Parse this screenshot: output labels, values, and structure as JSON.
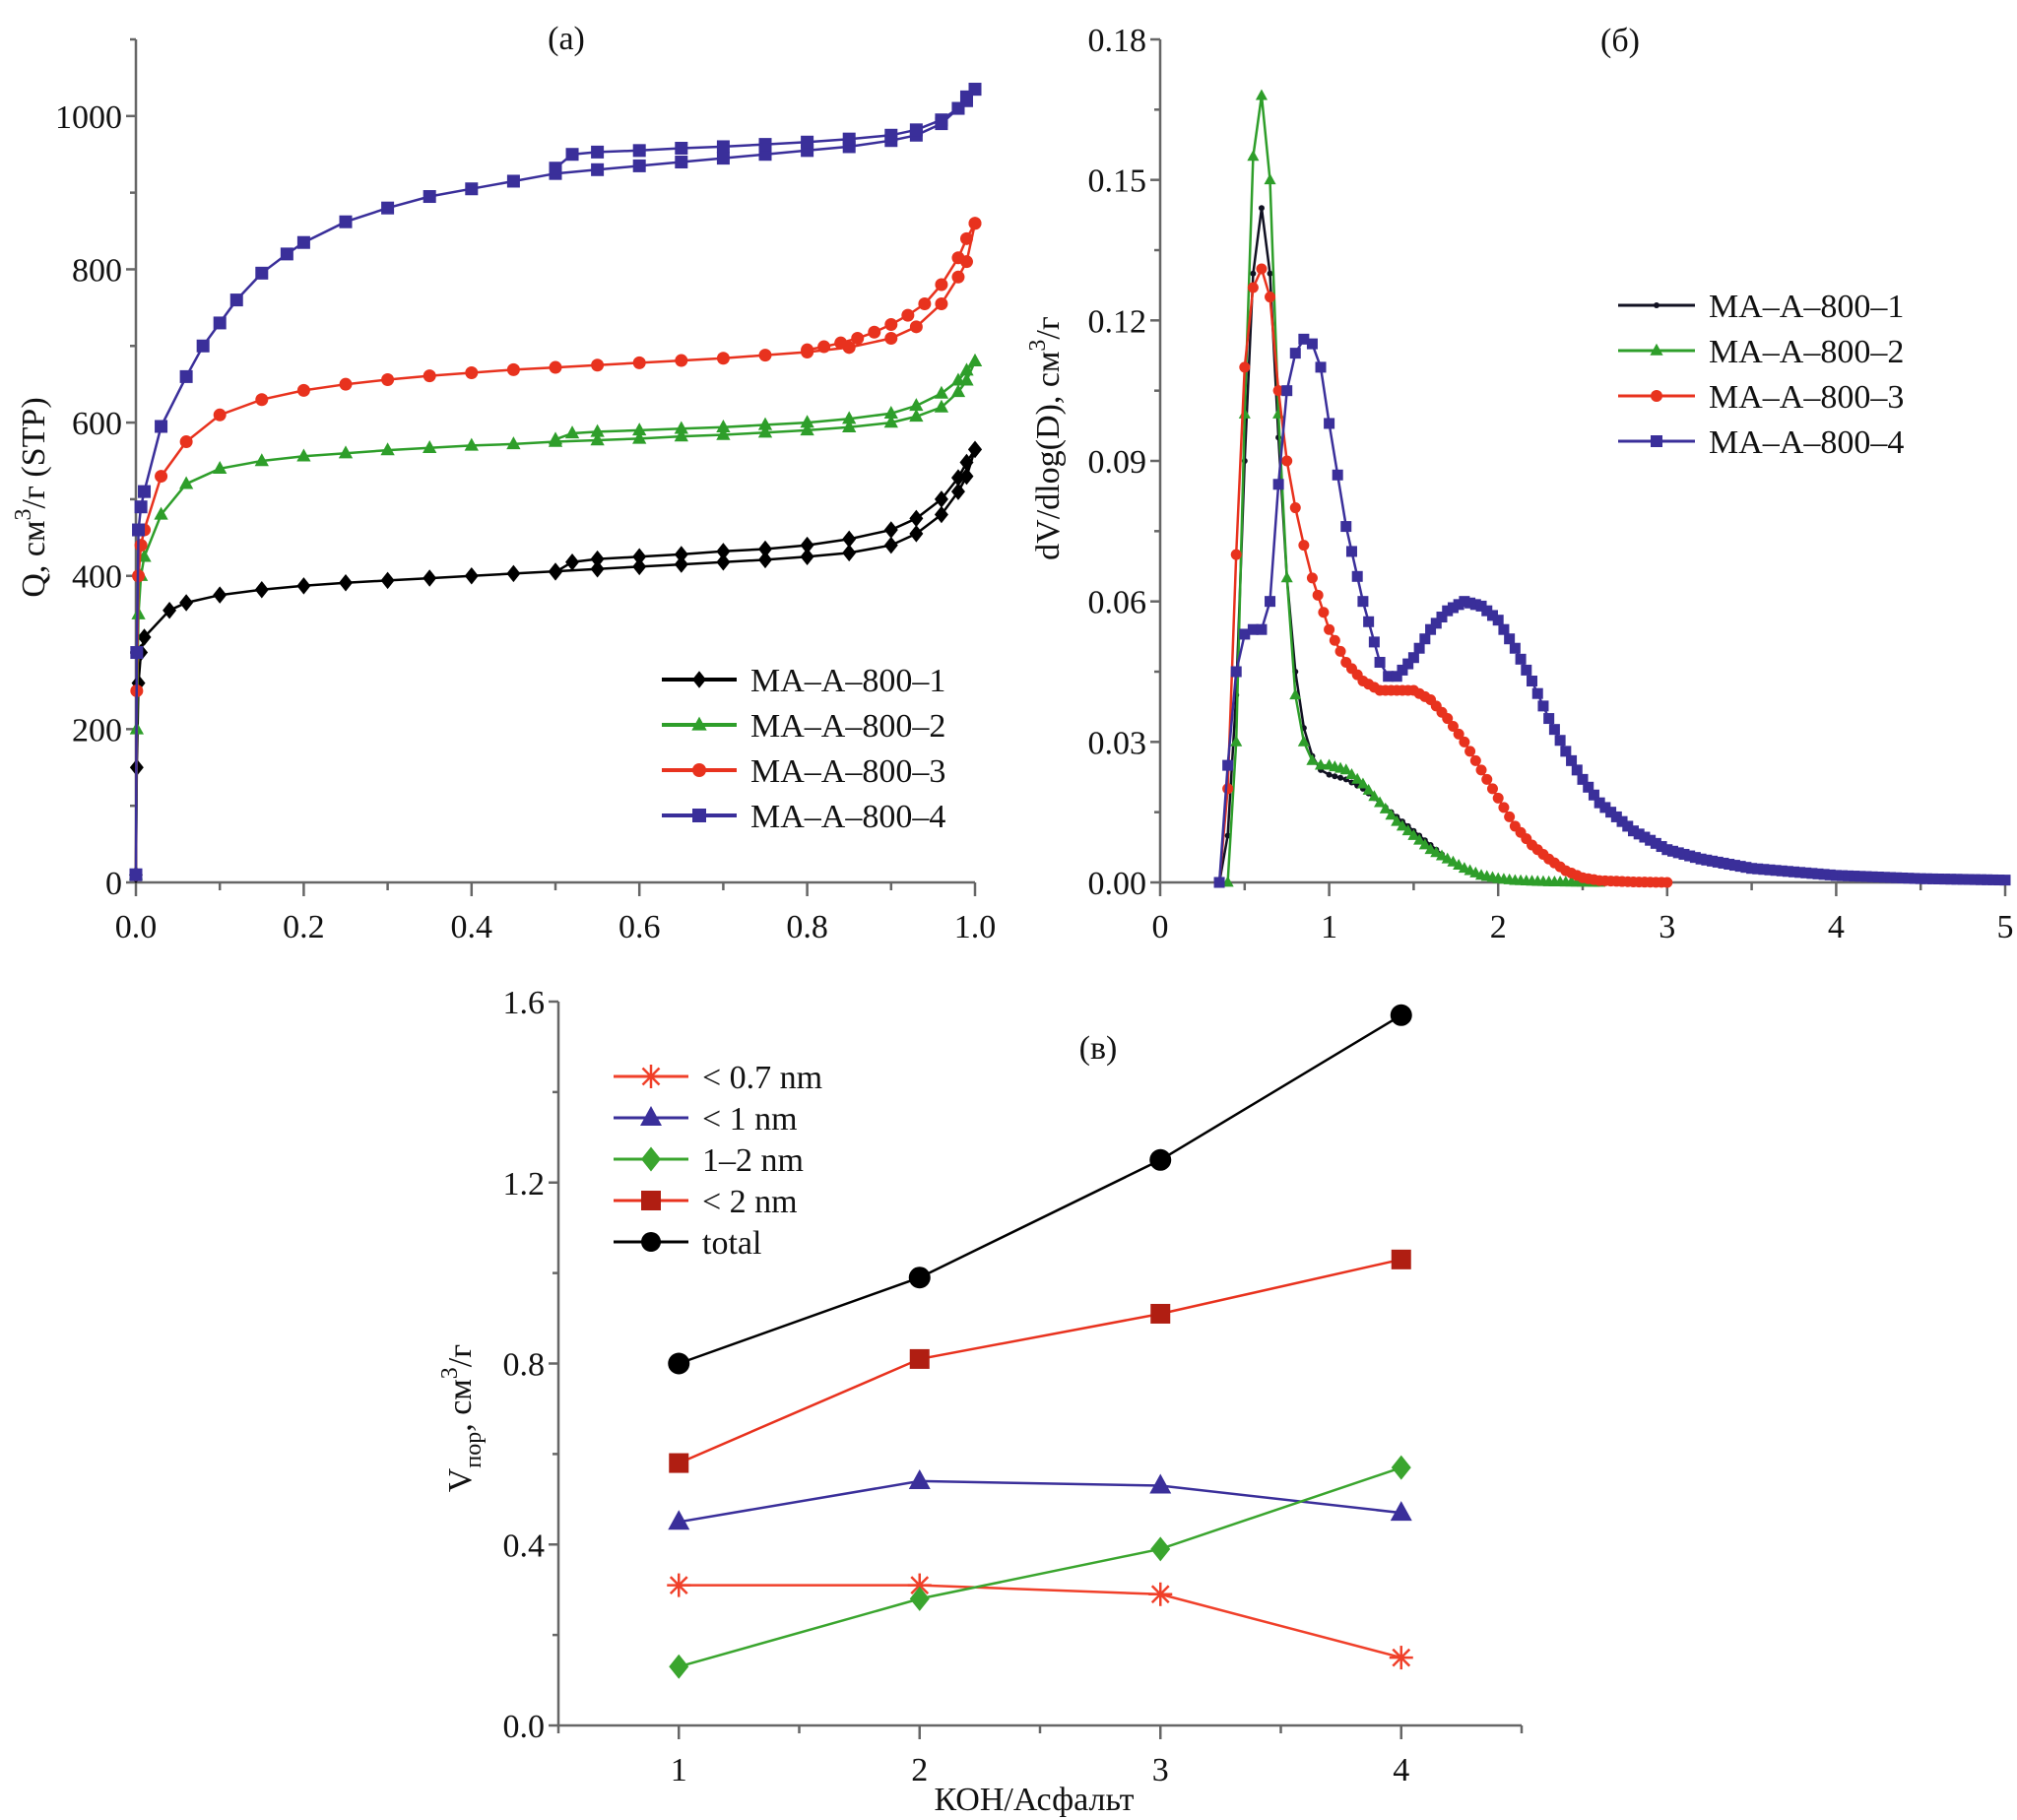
{
  "chart_data": [
    {
      "id": "a",
      "type": "line",
      "panel_label": "(a)",
      "title": "",
      "xlabel": "",
      "ylabel": "Q, см³/г (STP)",
      "ylabel_parts": {
        "main": "Q, см",
        "sup": "3",
        "tail": "/г (STP)"
      },
      "xlim": [
        0,
        1.0
      ],
      "ylim": [
        0,
        1100
      ],
      "xticks": [
        0.0,
        0.2,
        0.4,
        0.6,
        0.8,
        1.0
      ],
      "xtick_labels": [
        "0.0",
        "0.2",
        "0.4",
        "0.6",
        "0.8",
        "1.0"
      ],
      "yticks": [
        0,
        200,
        400,
        600,
        800,
        1000
      ],
      "ytick_labels": [
        "0",
        "200",
        "400",
        "600",
        "800",
        "1000"
      ],
      "grid": false,
      "legend_position": "bottom-right",
      "series": [
        {
          "name": "MA–A–800–1",
          "color": "#000000",
          "marker": "diamond",
          "adsorption": {
            "x": [
              0.0,
              0.001,
              0.003,
              0.006,
              0.01,
              0.04,
              0.06,
              0.1,
              0.15,
              0.2,
              0.25,
              0.3,
              0.35,
              0.4,
              0.45,
              0.5,
              0.55,
              0.6,
              0.65,
              0.7,
              0.75,
              0.8,
              0.85,
              0.9,
              0.93,
              0.96,
              0.98,
              0.99,
              1.0
            ],
            "y": [
              10,
              150,
              260,
              300,
              320,
              355,
              365,
              375,
              382,
              387,
              391,
              394,
              397,
              400,
              403,
              406,
              409,
              412,
              415,
              418,
              421,
              425,
              430,
              440,
              455,
              480,
              510,
              530,
              565
            ]
          },
          "desorption": {
            "x": [
              1.0,
              0.99,
              0.98,
              0.96,
              0.93,
              0.9,
              0.85,
              0.8,
              0.75,
              0.7,
              0.65,
              0.6,
              0.55,
              0.52,
              0.5
            ],
            "y": [
              565,
              548,
              528,
              500,
              475,
              460,
              448,
              440,
              435,
              432,
              428,
              425,
              422,
              418,
              405
            ]
          }
        },
        {
          "name": "MA–A–800–2",
          "color": "#2e9e2a",
          "marker": "triangle",
          "adsorption": {
            "x": [
              0.0,
              0.001,
              0.003,
              0.006,
              0.01,
              0.03,
              0.06,
              0.1,
              0.15,
              0.2,
              0.25,
              0.3,
              0.35,
              0.4,
              0.45,
              0.5,
              0.55,
              0.6,
              0.65,
              0.7,
              0.75,
              0.8,
              0.85,
              0.9,
              0.93,
              0.96,
              0.98,
              0.99,
              1.0
            ],
            "y": [
              10,
              200,
              350,
              400,
              425,
              480,
              520,
              540,
              550,
              556,
              560,
              564,
              567,
              570,
              572,
              575,
              577,
              579,
              582,
              584,
              587,
              590,
              594,
              600,
              608,
              620,
              640,
              655,
              680
            ]
          },
          "desorption": {
            "x": [
              1.0,
              0.99,
              0.98,
              0.96,
              0.93,
              0.9,
              0.85,
              0.8,
              0.75,
              0.7,
              0.65,
              0.6,
              0.55,
              0.52,
              0.5
            ],
            "y": [
              680,
              668,
              655,
              638,
              622,
              612,
              605,
              600,
              597,
              594,
              592,
              590,
              588,
              586,
              578
            ]
          }
        },
        {
          "name": "MA–A–800–3",
          "color": "#e8321e",
          "marker": "circle",
          "adsorption": {
            "x": [
              0.0,
              0.001,
              0.003,
              0.006,
              0.01,
              0.03,
              0.06,
              0.1,
              0.15,
              0.2,
              0.25,
              0.3,
              0.35,
              0.4,
              0.45,
              0.5,
              0.55,
              0.6,
              0.65,
              0.7,
              0.75,
              0.8,
              0.85,
              0.9,
              0.93,
              0.96,
              0.98,
              0.99,
              1.0
            ],
            "y": [
              10,
              250,
              400,
              440,
              460,
              530,
              575,
              610,
              630,
              642,
              650,
              656,
              661,
              665,
              669,
              672,
              675,
              678,
              681,
              684,
              688,
              692,
              698,
              710,
              725,
              755,
              790,
              810,
              860
            ]
          },
          "desorption": {
            "x": [
              1.0,
              0.99,
              0.98,
              0.96,
              0.94,
              0.92,
              0.9,
              0.88,
              0.86,
              0.84,
              0.82,
              0.8
            ],
            "y": [
              860,
              840,
              815,
              780,
              755,
              740,
              728,
              718,
              710,
              704,
              699,
              695
            ]
          }
        },
        {
          "name": "MA–A–800–4",
          "color": "#3a2f9a",
          "marker": "square",
          "adsorption": {
            "x": [
              0.0,
              0.001,
              0.003,
              0.006,
              0.01,
              0.03,
              0.06,
              0.08,
              0.1,
              0.12,
              0.15,
              0.18,
              0.2,
              0.25,
              0.3,
              0.35,
              0.4,
              0.45,
              0.5,
              0.55,
              0.6,
              0.65,
              0.7,
              0.75,
              0.8,
              0.85,
              0.9,
              0.93,
              0.96,
              0.98,
              0.99,
              1.0
            ],
            "y": [
              10,
              300,
              460,
              490,
              510,
              595,
              660,
              700,
              730,
              760,
              795,
              820,
              835,
              862,
              880,
              895,
              905,
              915,
              925,
              930,
              935,
              940,
              945,
              950,
              955,
              960,
              968,
              975,
              990,
              1010,
              1020,
              1035
            ]
          },
          "desorption": {
            "x": [
              1.0,
              0.99,
              0.98,
              0.96,
              0.93,
              0.9,
              0.85,
              0.8,
              0.75,
              0.7,
              0.65,
              0.6,
              0.55,
              0.52,
              0.5
            ],
            "y": [
              1035,
              1025,
              1010,
              995,
              982,
              975,
              970,
              966,
              963,
              960,
              958,
              955,
              953,
              950,
              932
            ]
          }
        }
      ]
    },
    {
      "id": "b",
      "type": "line",
      "panel_label": "(б)",
      "title": "",
      "xlabel": "",
      "ylabel": "dV/dlog(D), см³/г",
      "ylabel_parts": {
        "main": "dV/dlog(D), см",
        "sup": "3",
        "tail": "/г"
      },
      "xlim": [
        0,
        5
      ],
      "ylim": [
        0,
        0.18
      ],
      "xticks": [
        0,
        1,
        2,
        3,
        4,
        5
      ],
      "xtick_labels": [
        "0",
        "1",
        "2",
        "3",
        "4",
        "5"
      ],
      "yticks": [
        0.0,
        0.03,
        0.06,
        0.09,
        0.12,
        0.15,
        0.18
      ],
      "ytick_labels": [
        "0.00",
        "0.03",
        "0.06",
        "0.09",
        "0.12",
        "0.15",
        "0.18"
      ],
      "grid": false,
      "legend_position": "top-right",
      "series": [
        {
          "name": "MA–A–800–1",
          "color": "#111122",
          "marker": "small-dot",
          "x": [
            0.35,
            0.4,
            0.45,
            0.5,
            0.55,
            0.6,
            0.65,
            0.7,
            0.75,
            0.8,
            0.85,
            0.9,
            0.95,
            1.0,
            1.1,
            1.2,
            1.3,
            1.4,
            1.5,
            1.6,
            1.7,
            1.8,
            1.9,
            2.0,
            2.1,
            2.2,
            2.5
          ],
          "y": [
            0.0,
            0.01,
            0.04,
            0.09,
            0.13,
            0.144,
            0.13,
            0.095,
            0.065,
            0.045,
            0.033,
            0.027,
            0.024,
            0.023,
            0.022,
            0.02,
            0.017,
            0.014,
            0.011,
            0.008,
            0.005,
            0.003,
            0.0015,
            0.0008,
            0.0003,
            0.0001,
            0.0
          ]
        },
        {
          "name": "MA–A–800–2",
          "color": "#2e9e2a",
          "marker": "triangle",
          "x": [
            0.4,
            0.45,
            0.5,
            0.55,
            0.6,
            0.65,
            0.7,
            0.75,
            0.8,
            0.85,
            0.9,
            0.95,
            1.0,
            1.1,
            1.2,
            1.3,
            1.4,
            1.5,
            1.6,
            1.7,
            1.8,
            1.9,
            2.0,
            2.1,
            2.3,
            2.6
          ],
          "y": [
            0.0,
            0.03,
            0.1,
            0.155,
            0.168,
            0.15,
            0.1,
            0.065,
            0.04,
            0.03,
            0.026,
            0.025,
            0.025,
            0.024,
            0.021,
            0.017,
            0.013,
            0.01,
            0.007,
            0.005,
            0.003,
            0.0015,
            0.0008,
            0.0004,
            0.0001,
            0.0
          ]
        },
        {
          "name": "MA–A–800–3",
          "color": "#e8321e",
          "marker": "circle",
          "x": [
            0.35,
            0.4,
            0.45,
            0.5,
            0.55,
            0.6,
            0.65,
            0.7,
            0.75,
            0.8,
            0.85,
            0.9,
            1.0,
            1.1,
            1.2,
            1.3,
            1.4,
            1.5,
            1.6,
            1.7,
            1.8,
            1.9,
            2.0,
            2.1,
            2.2,
            2.3,
            2.4,
            2.5,
            2.6,
            2.8,
            3.0
          ],
          "y": [
            0.0,
            0.02,
            0.07,
            0.11,
            0.127,
            0.131,
            0.125,
            0.105,
            0.09,
            0.08,
            0.072,
            0.065,
            0.054,
            0.047,
            0.043,
            0.041,
            0.041,
            0.041,
            0.039,
            0.035,
            0.03,
            0.024,
            0.018,
            0.012,
            0.008,
            0.005,
            0.0025,
            0.001,
            0.0004,
            0.0001,
            0.0
          ]
        },
        {
          "name": "MA–A–800–4",
          "color": "#3a2f9a",
          "marker": "square",
          "x": [
            0.35,
            0.4,
            0.45,
            0.5,
            0.55,
            0.6,
            0.65,
            0.7,
            0.75,
            0.8,
            0.85,
            0.9,
            0.95,
            1.0,
            1.05,
            1.1,
            1.2,
            1.3,
            1.35,
            1.4,
            1.5,
            1.6,
            1.7,
            1.8,
            1.9,
            2.0,
            2.1,
            2.2,
            2.3,
            2.4,
            2.5,
            2.6,
            2.8,
            3.0,
            3.2,
            3.5,
            4.0,
            4.5,
            5.0
          ],
          "y": [
            0.0,
            0.025,
            0.045,
            0.053,
            0.054,
            0.054,
            0.06,
            0.085,
            0.105,
            0.113,
            0.116,
            0.115,
            0.11,
            0.098,
            0.087,
            0.076,
            0.06,
            0.047,
            0.044,
            0.044,
            0.048,
            0.054,
            0.058,
            0.06,
            0.059,
            0.056,
            0.05,
            0.043,
            0.035,
            0.028,
            0.022,
            0.017,
            0.011,
            0.007,
            0.005,
            0.003,
            0.0015,
            0.0008,
            0.0005
          ]
        }
      ]
    },
    {
      "id": "c",
      "type": "line",
      "panel_label": "(в)",
      "title": "",
      "xlabel": "КОН/Асфальт",
      "ylabel": "Vпор, см³/г",
      "ylabel_parts": {
        "main": "V",
        "sub": "пор",
        "mid": ", см",
        "sup": "3",
        "tail": "/г"
      },
      "xlim": [
        0.5,
        4.5
      ],
      "ylim": [
        0,
        1.6
      ],
      "xticks": [
        1,
        2,
        3,
        4
      ],
      "xtick_labels": [
        "1",
        "2",
        "3",
        "4"
      ],
      "yticks": [
        0.0,
        0.4,
        0.8,
        1.2,
        1.6
      ],
      "ytick_labels": [
        "0.0",
        "0.4",
        "0.8",
        "1.2",
        "1.6"
      ],
      "grid": false,
      "legend_position": "top-left",
      "categories": [
        1,
        2,
        3,
        4
      ],
      "series": [
        {
          "name": "< 0.7 nm",
          "color": "#f0402a",
          "marker": "asterisk",
          "values": [
            0.31,
            0.31,
            0.29,
            0.15
          ]
        },
        {
          "name": "< 1 nm",
          "color": "#3a2f9a",
          "marker": "triangle",
          "values": [
            0.45,
            0.54,
            0.53,
            0.47
          ]
        },
        {
          "name": "1–2 nm",
          "color": "#3aa52e",
          "marker": "diamond",
          "values": [
            0.13,
            0.28,
            0.39,
            0.57
          ]
        },
        {
          "name": "< 2 nm",
          "color": "#b01e12",
          "marker": "square",
          "line_color": "#e8321e",
          "values": [
            0.58,
            0.81,
            0.91,
            1.03
          ]
        },
        {
          "name": "total",
          "color": "#000000",
          "marker": "circle",
          "values": [
            0.8,
            0.99,
            1.25,
            1.57
          ]
        }
      ]
    }
  ]
}
